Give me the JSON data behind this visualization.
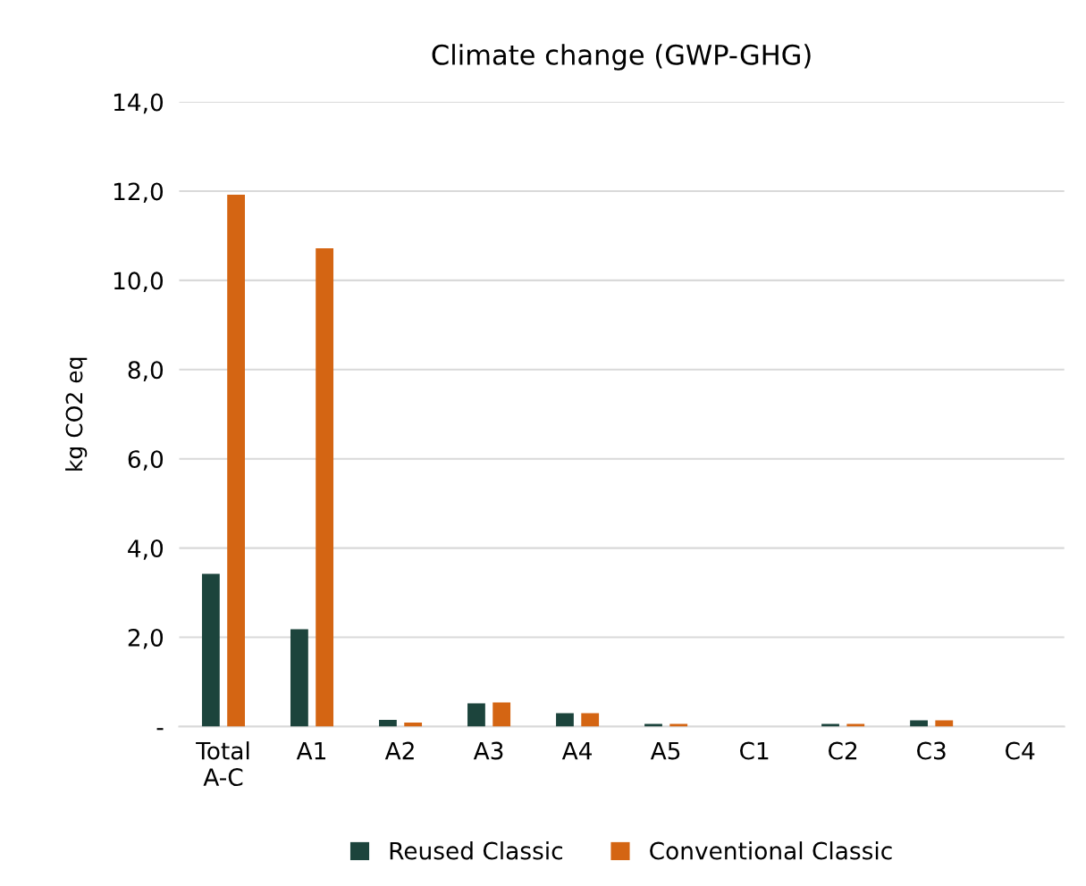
{
  "chart_data": {
    "type": "bar",
    "title": "Climate change (GWP-GHG)",
    "ylabel": "kg CO2 eq",
    "categories": [
      "Total\nA-C",
      "A1",
      "A2",
      "A3",
      "A4",
      "A5",
      "C1",
      "C2",
      "C3",
      "C4"
    ],
    "series": [
      {
        "name": "Reused Classic",
        "color": "#1c443c",
        "values": [
          3.42,
          2.18,
          0.15,
          0.52,
          0.3,
          0.06,
          0,
          0.06,
          0.14,
          0
        ]
      },
      {
        "name": "Conventional Classic",
        "color": "#d46513",
        "values": [
          11.92,
          10.72,
          0.09,
          0.54,
          0.3,
          0.06,
          0,
          0.06,
          0.14,
          0
        ]
      }
    ],
    "ylim": [
      0,
      14
    ],
    "yticks": [
      {
        "value": 0,
        "label": "-"
      },
      {
        "value": 2,
        "label": "2,0"
      },
      {
        "value": 4,
        "label": "4,0"
      },
      {
        "value": 6,
        "label": "6,0"
      },
      {
        "value": 8,
        "label": "8,0"
      },
      {
        "value": 10,
        "label": "10,0"
      },
      {
        "value": 12,
        "label": "12,0"
      },
      {
        "value": 14,
        "label": "14,0"
      }
    ],
    "grid": "y",
    "legend": "bottom"
  }
}
